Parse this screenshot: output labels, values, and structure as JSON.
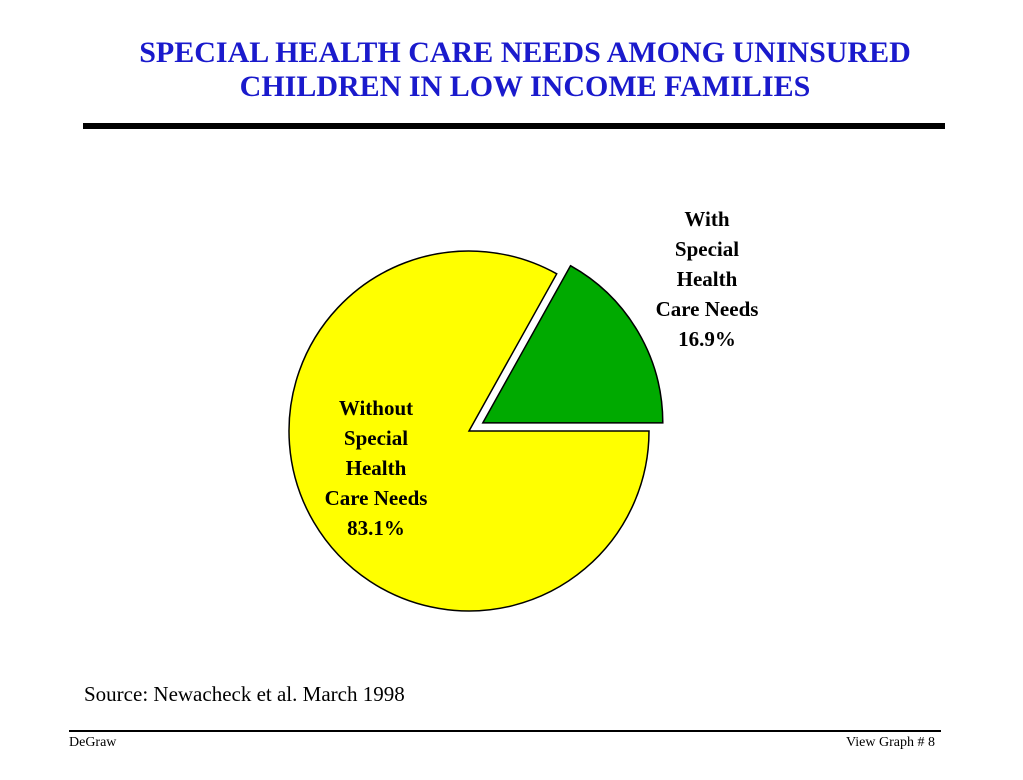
{
  "slide": {
    "title_line1": "SPECIAL HEALTH CARE NEEDS AMONG UNINSURED",
    "title_line2": "CHILDREN IN LOW INCOME FAMILIES",
    "source": "Source:  Newacheck et al. March 1998",
    "footer_left": "DeGraw",
    "footer_right": "View Graph  # 8"
  },
  "chart_data": {
    "type": "pie",
    "title": "SPECIAL HEALTH CARE NEEDS AMONG UNINSURED CHILDREN IN LOW INCOME FAMILIES",
    "slices": [
      {
        "label_lines": [
          "With",
          "Special",
          "Health",
          "Care Needs",
          "16.9%"
        ],
        "value": 16.9,
        "color": "#00aa00",
        "exploded": true
      },
      {
        "label_lines": [
          "Without",
          "Special",
          "Health",
          "Care Needs",
          "83.1%"
        ],
        "value": 83.1,
        "color": "#ffff00",
        "exploded": false
      }
    ],
    "outline_color": "#000000"
  }
}
